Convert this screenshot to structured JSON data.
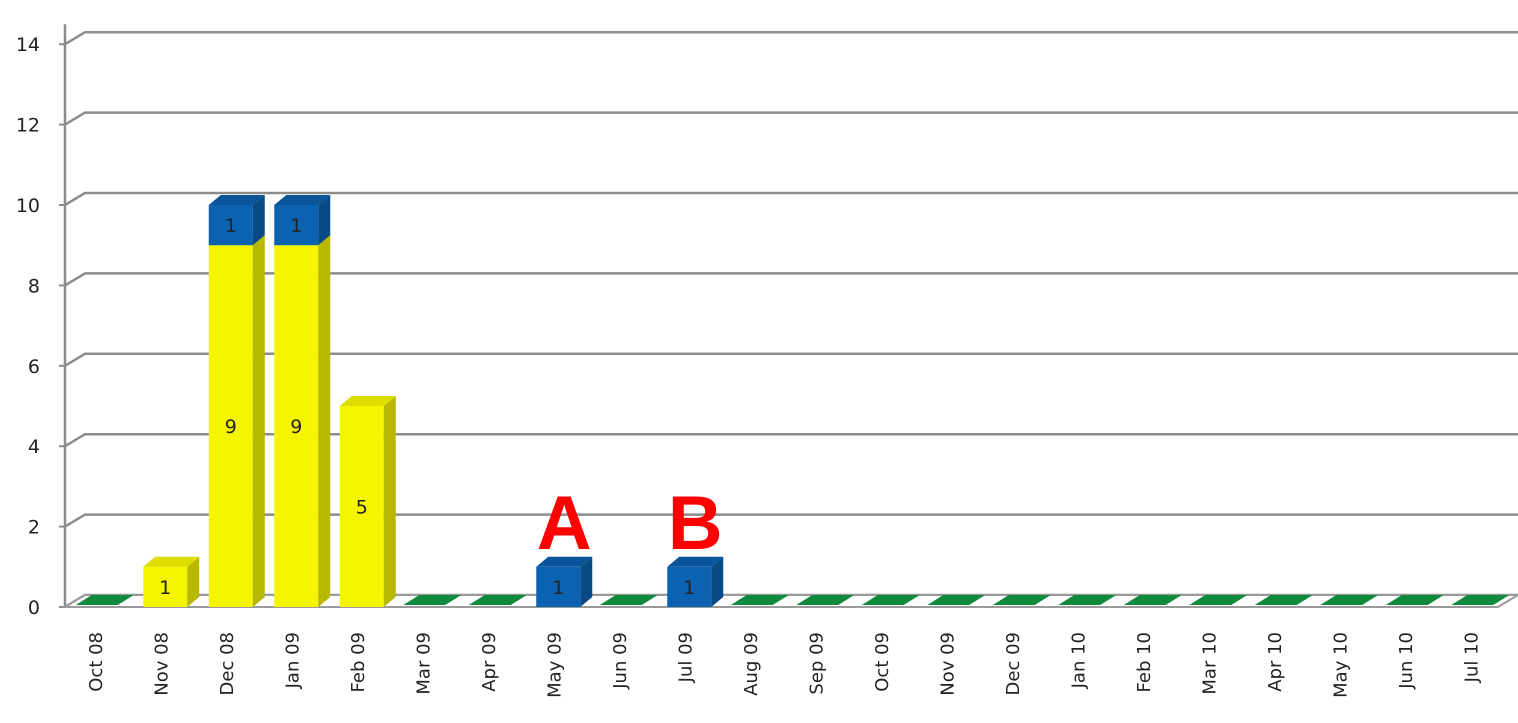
{
  "chart_data": {
    "type": "bar",
    "stacked": true,
    "three_d": true,
    "grid": true,
    "ylim": [
      0,
      14
    ],
    "yticks": [
      0,
      2,
      4,
      6,
      8,
      10,
      12,
      14
    ],
    "categories": [
      "Oct 08",
      "Nov 08",
      "Dec 08",
      "Jan 09",
      "Feb 09",
      "Mar 09",
      "Apr 09",
      "May 09",
      "Jun 09",
      "Jul 09",
      "Aug 09",
      "Sep 09",
      "Oct 09",
      "Nov 09",
      "Dec 09",
      "Jan 10",
      "Feb 10",
      "Mar 10",
      "Apr 10",
      "May 10",
      "Jun 10",
      "Jul 10"
    ],
    "series": [
      {
        "color": "#f5f500",
        "side": "#b8b800",
        "top": "#dddd00",
        "values": [
          0,
          1,
          9,
          9,
          5,
          0,
          0,
          0,
          0,
          0,
          0,
          0,
          0,
          0,
          0,
          0,
          0,
          0,
          0,
          0,
          0,
          0
        ]
      },
      {
        "color": "#0b62b0",
        "side": "#074a86",
        "top": "#0a5499",
        "values": [
          0,
          0,
          1,
          1,
          0,
          0,
          0,
          1,
          0,
          1,
          0,
          0,
          0,
          0,
          0,
          0,
          0,
          0,
          0,
          0,
          0,
          0
        ]
      }
    ],
    "zero_marker_color": "#0f8a3c",
    "annotations": [
      {
        "text": "A",
        "category": "May 09",
        "color": "#ff0000"
      },
      {
        "text": "B",
        "category": "Jul 09",
        "color": "#ff0000"
      }
    ]
  }
}
